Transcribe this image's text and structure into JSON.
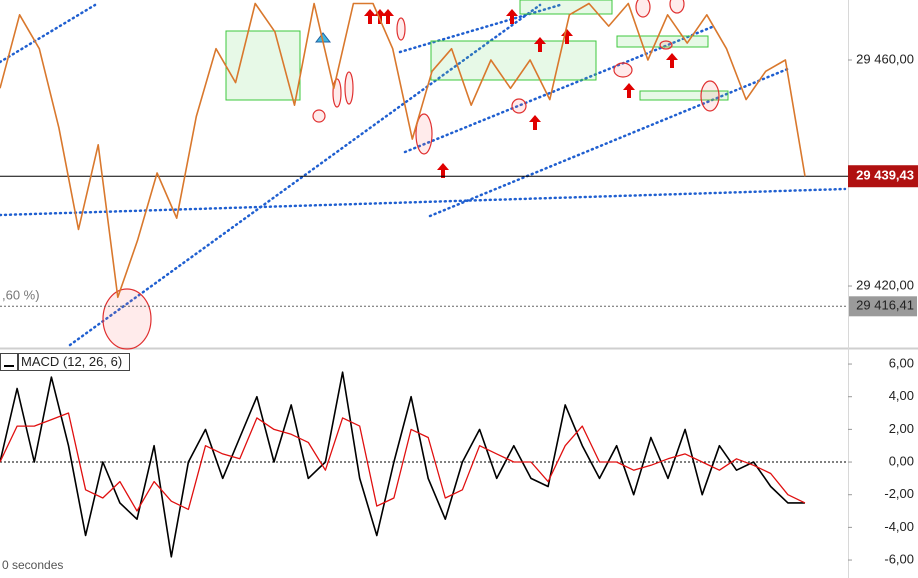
{
  "chart_data": [
    {
      "type": "line",
      "annotation": ",60 %)",
      "series": [
        {
          "color": "#d9782d",
          "values": [
            29455,
            29468,
            29462,
            29448,
            29430,
            29445,
            29418,
            29428,
            29440,
            29432,
            29450,
            29462,
            29456,
            29470,
            29465,
            29452,
            29470,
            29455,
            29470,
            29470,
            29462,
            29446,
            29458,
            29462,
            29452,
            29460,
            29455,
            29460,
            29453,
            29468,
            29470,
            29466,
            29470,
            29460,
            29468,
            29463,
            29468,
            29462,
            29453,
            29458,
            29460,
            29439.43
          ]
        }
      ],
      "ylim": [
        29409.03,
        29470.62
      ],
      "yticks": [
        {
          "value": 29460,
          "label": "29 460,00"
        },
        {
          "value": 29420,
          "label": "29 420,00"
        }
      ],
      "last_price": {
        "value": 29439.43,
        "label": "29 439,43",
        "color": "#b01010"
      },
      "reference_level": {
        "value": 29416.41,
        "label": "29 416,41",
        "color": "#9a9a9a"
      }
    },
    {
      "type": "line",
      "title": "MACD (12, 26, 6)",
      "footer": "0 secondes",
      "series": [
        {
          "color": "#000000",
          "values": [
            0,
            4.5,
            0,
            5.2,
            1,
            -4.5,
            0,
            -2.5,
            -3.5,
            1,
            -5.8,
            0,
            2,
            -1,
            1.5,
            4,
            0,
            3.5,
            -1,
            0,
            5.5,
            -1,
            -4.5,
            0,
            4,
            -1,
            -3.5,
            0,
            2,
            -1,
            1,
            -1,
            -1.5,
            3.5,
            1,
            -1,
            1,
            -2,
            1.5,
            -1,
            2,
            -2,
            1,
            -0.5,
            0,
            -1.5,
            -2.5,
            -2.5
          ]
        },
        {
          "color": "#e01010",
          "values": [
            0,
            2.2,
            2.2,
            2.6,
            3,
            -1.7,
            -2.2,
            -1.2,
            -3,
            -1.2,
            -2.4,
            -2.9,
            1,
            0.5,
            0.2,
            2.7,
            2,
            1.7,
            1.2,
            -0.5,
            2.7,
            2.2,
            -2.7,
            -2.2,
            2,
            1.5,
            -2.2,
            -1.7,
            1,
            0.5,
            0,
            0,
            -1.2,
            1,
            2.2,
            0,
            0,
            -0.5,
            -0.2,
            0.2,
            0.5,
            0,
            -0.5,
            0.2,
            -0.2,
            -0.7,
            -2,
            -2.5
          ]
        }
      ],
      "ylim": [
        -7.1,
        6.86
      ],
      "yticks": [
        {
          "value": 6,
          "label": "6,00"
        },
        {
          "value": 4,
          "label": "4,00"
        },
        {
          "value": 2,
          "label": "2,00"
        },
        {
          "value": 0,
          "label": "0,00"
        },
        {
          "value": -2,
          "label": "-2,00"
        },
        {
          "value": -4,
          "label": "-4,00"
        },
        {
          "value": -6,
          "label": "-6,00"
        }
      ],
      "zero_line": 0
    }
  ]
}
